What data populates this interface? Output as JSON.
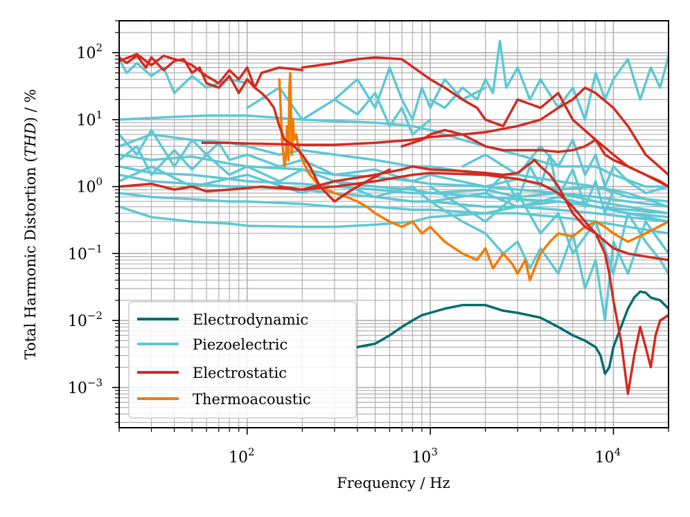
{
  "chart_data": {
    "type": "line",
    "title": "",
    "xlabel": "Frequency / Hz",
    "ylabel_parts": [
      "Total Harmonic Distortion (",
      "THD",
      ") / %"
    ],
    "xscale": "log",
    "yscale": "log",
    "xlim": [
      20,
      20000
    ],
    "ylim": [
      0.00025,
      300
    ],
    "grid": "major and minor",
    "legend_position": "lower-left",
    "x_ticks": [
      {
        "value": 100,
        "base": "10",
        "exp": "2"
      },
      {
        "value": 1000,
        "base": "10",
        "exp": "3"
      },
      {
        "value": 10000,
        "base": "10",
        "exp": "4"
      }
    ],
    "y_ticks": [
      {
        "value": 0.001,
        "base": "10",
        "exp": "−3"
      },
      {
        "value": 0.01,
        "base": "10",
        "exp": "−2"
      },
      {
        "value": 0.1,
        "base": "10",
        "exp": "−1"
      },
      {
        "value": 1,
        "base": "10",
        "exp": "0"
      },
      {
        "value": 10,
        "base": "10",
        "exp": "1"
      },
      {
        "value": 100,
        "base": "10",
        "exp": "2"
      }
    ],
    "legend": [
      {
        "name": "Electrodynamic",
        "color": "#006d6f"
      },
      {
        "name": "Piezoelectric",
        "color": "#5ec8d4"
      },
      {
        "name": "Electrostatic",
        "color": "#d42a1e"
      },
      {
        "name": "Thermoacoustic",
        "color": "#f57a00"
      }
    ],
    "series": [
      {
        "group": "Piezoelectric",
        "x": [
          20,
          40,
          60,
          100,
          200,
          300,
          500,
          800,
          1000,
          1500,
          2000,
          3000,
          5000,
          8000,
          10000,
          15000,
          20000
        ],
        "y": [
          10,
          11,
          11.5,
          11.5,
          10,
          9.5,
          9,
          8,
          7,
          5,
          4,
          3,
          2,
          2,
          1.5,
          1,
          1
        ]
      },
      {
        "group": "Piezoelectric",
        "x": [
          20,
          30,
          50,
          80,
          100,
          150,
          200,
          300,
          500,
          800,
          1000,
          2000,
          3000,
          5000,
          8000,
          12000,
          20000
        ],
        "y": [
          4,
          6,
          5,
          4.5,
          4,
          3,
          3.5,
          3,
          2.5,
          2,
          2,
          1.5,
          1.5,
          1.2,
          1,
          0.8,
          0.5
        ]
      },
      {
        "group": "Piezoelectric",
        "x": [
          20,
          30,
          50,
          80,
          100,
          200,
          300,
          500,
          800,
          1000,
          2000,
          3000,
          5000,
          8000,
          12000,
          20000
        ],
        "y": [
          3,
          2.5,
          2.8,
          2.2,
          2,
          1.8,
          1.5,
          1.4,
          1.2,
          1.1,
          1,
          0.9,
          0.8,
          0.7,
          0.6,
          0.5
        ]
      },
      {
        "group": "Piezoelectric",
        "x": [
          20,
          30,
          50,
          80,
          100,
          200,
          300,
          500,
          800,
          1000,
          2000,
          3000,
          5000,
          8000,
          12000,
          20000
        ],
        "y": [
          2,
          1.6,
          1.5,
          1.3,
          1.2,
          1.1,
          1,
          0.9,
          0.8,
          0.8,
          0.7,
          0.65,
          0.6,
          0.5,
          0.45,
          0.4
        ]
      },
      {
        "group": "Piezoelectric",
        "x": [
          20,
          30,
          50,
          80,
          100,
          200,
          300,
          500,
          800,
          1000,
          2000,
          3000,
          5000,
          8000,
          12000,
          20000
        ],
        "y": [
          1.5,
          1.2,
          1.1,
          1,
          1,
          0.9,
          0.8,
          0.7,
          0.6,
          0.6,
          0.5,
          0.5,
          0.45,
          0.4,
          0.35,
          0.3
        ]
      },
      {
        "group": "Piezoelectric",
        "x": [
          20,
          30,
          50,
          80,
          100,
          200,
          300,
          500,
          800,
          1000,
          2000,
          3000,
          5000,
          8000,
          12000,
          20000
        ],
        "y": [
          0.8,
          0.7,
          0.65,
          0.6,
          0.6,
          0.55,
          0.5,
          0.5,
          0.45,
          0.45,
          0.4,
          0.4,
          0.35,
          0.3,
          0.25,
          0.2
        ]
      },
      {
        "group": "Piezoelectric",
        "x": [
          20,
          30,
          50,
          80,
          100,
          200,
          300,
          500,
          800,
          1000,
          2000,
          3000,
          5000,
          8000,
          12000,
          20000
        ],
        "y": [
          0.5,
          0.35,
          0.3,
          0.28,
          0.26,
          0.25,
          0.25,
          0.27,
          0.3,
          0.35,
          0.4,
          0.5,
          0.6,
          0.5,
          0.4,
          0.3
        ]
      },
      {
        "group": "Piezoelectric",
        "x": [
          20,
          25,
          30,
          40,
          50,
          60,
          70,
          80,
          100,
          150,
          200,
          300,
          500,
          800,
          1000,
          2000,
          3000,
          5000,
          8000,
          12000,
          20000
        ],
        "y": [
          6,
          3,
          7,
          2,
          5,
          3,
          4.5,
          2.5,
          3,
          2,
          2.5,
          1.5,
          1.8,
          1.2,
          1.5,
          1,
          1.3,
          0.9,
          1,
          0.7,
          0.6
        ]
      },
      {
        "group": "Piezoelectric",
        "x": [
          20,
          25,
          30,
          40,
          50,
          60,
          80,
          100,
          150,
          200,
          300,
          500,
          800,
          1000,
          2000,
          3000,
          5000,
          8000,
          12000,
          20000
        ],
        "y": [
          2.5,
          4,
          1.5,
          3.5,
          1.8,
          3,
          1.5,
          2,
          1.2,
          1.8,
          1.2,
          1,
          0.9,
          0.8,
          0.9,
          0.7,
          0.8,
          0.6,
          0.5,
          0.4
        ]
      },
      {
        "group": "Piezoelectric",
        "x": [
          20,
          30,
          50,
          100,
          200,
          300,
          500,
          800,
          1000,
          2000,
          3000,
          5000,
          8000,
          12000,
          20000
        ],
        "y": [
          1.2,
          2,
          1,
          1.5,
          0.8,
          1.2,
          0.7,
          1,
          0.6,
          0.8,
          0.5,
          0.7,
          0.5,
          0.4,
          0.35
        ]
      },
      {
        "group": "Piezoelectric",
        "x": [
          20,
          22,
          25,
          30,
          35,
          40,
          50,
          60,
          80,
          100
        ],
        "y": [
          80,
          50,
          70,
          45,
          60,
          25,
          45,
          30,
          40,
          35
        ]
      },
      {
        "group": "Piezoelectric",
        "x": [
          1000,
          1200,
          1500,
          1800,
          2000,
          2200,
          2400,
          2600,
          3000,
          3500,
          4000,
          5000,
          6000,
          7000,
          8000,
          9000,
          10000,
          12000,
          14000,
          16000,
          18000,
          20000
        ],
        "y": [
          20,
          15,
          30,
          20,
          40,
          25,
          150,
          30,
          60,
          20,
          40,
          15,
          30,
          10,
          50,
          20,
          40,
          80,
          20,
          60,
          30,
          90
        ]
      },
      {
        "group": "Piezoelectric",
        "x": [
          300,
          400,
          500,
          600,
          700,
          800,
          900,
          1000,
          1200,
          1500,
          2000
        ],
        "y": [
          20,
          40,
          15,
          60,
          20,
          10,
          30,
          15,
          40,
          20,
          30
        ]
      },
      {
        "group": "Piezoelectric",
        "x": [
          100,
          150,
          200,
          300,
          400,
          500,
          600,
          700,
          800,
          1000
        ],
        "y": [
          15,
          30,
          10,
          20,
          12,
          25,
          8,
          15,
          6,
          10
        ]
      },
      {
        "group": "Piezoelectric",
        "x": [
          1000,
          1500,
          2000,
          2500,
          3000,
          3500,
          4000,
          5000,
          6000,
          7000,
          8000,
          9000,
          10000,
          12000,
          15000,
          20000
        ],
        "y": [
          0.6,
          0.3,
          0.2,
          0.1,
          0.15,
          0.06,
          0.12,
          0.05,
          0.2,
          0.03,
          0.08,
          0.01,
          0.15,
          0.05,
          0.3,
          0.1
        ]
      },
      {
        "group": "Piezoelectric",
        "x": [
          1000,
          1500,
          2000,
          3000,
          4000,
          5000,
          6000,
          8000,
          10000,
          12000,
          15000,
          18000,
          20000
        ],
        "y": [
          1,
          0.5,
          0.3,
          0.8,
          0.2,
          0.4,
          0.1,
          0.3,
          0.05,
          0.4,
          0.15,
          0.08,
          0.05
        ]
      },
      {
        "group": "Piezoelectric",
        "x": [
          1500,
          2000,
          3000,
          4000,
          5000,
          6000,
          7000,
          8000,
          9000,
          10000,
          12000,
          15000,
          20000
        ],
        "y": [
          2,
          3,
          1.5,
          4,
          2,
          5,
          1.5,
          3,
          1,
          2,
          1.2,
          0.8,
          1
        ]
      },
      {
        "group": "Piezoelectric",
        "x": [
          2000,
          2500,
          3000,
          3500,
          4000,
          4500,
          5000,
          6000,
          7000,
          8000,
          9000,
          10000
        ],
        "y": [
          0.8,
          1.5,
          0.6,
          2,
          1,
          3,
          0.7,
          1.8,
          0.5,
          1.2,
          0.4,
          0.9
        ]
      },
      {
        "group": "Electrodynamic",
        "x": [
          400,
          500,
          600,
          700,
          800,
          900,
          1000,
          1200,
          1500,
          2000,
          2500,
          3000,
          4000,
          5000,
          6000,
          7000,
          8000,
          8500,
          9000,
          9500,
          10000,
          11000,
          12000,
          13000,
          14000,
          15000,
          16000,
          18000,
          20000
        ],
        "y": [
          0.004,
          0.0045,
          0.006,
          0.008,
          0.01,
          0.012,
          0.013,
          0.015,
          0.017,
          0.017,
          0.014,
          0.013,
          0.011,
          0.008,
          0.006,
          0.005,
          0.004,
          0.003,
          0.0016,
          0.002,
          0.004,
          0.008,
          0.015,
          0.022,
          0.027,
          0.026,
          0.022,
          0.02,
          0.015
        ]
      },
      {
        "group": "Electrostatic",
        "x": [
          20,
          25,
          30,
          35,
          40,
          45,
          50,
          60,
          70,
          80,
          90,
          100,
          110,
          120,
          130,
          140,
          150,
          160,
          170,
          180,
          190,
          200,
          220,
          250,
          300,
          350,
          400,
          450,
          500,
          550,
          600
        ],
        "y": [
          75,
          95,
          65,
          90,
          80,
          75,
          65,
          45,
          35,
          55,
          40,
          60,
          30,
          25,
          20,
          15,
          8,
          5,
          4.5,
          4,
          3.5,
          3,
          2,
          1,
          0.6,
          0.8,
          1,
          1.2,
          1.4,
          1.6,
          1.8
        ]
      },
      {
        "group": "Electrostatic",
        "x": [
          20,
          22,
          25,
          28,
          30,
          35,
          40,
          45,
          50,
          55,
          60,
          70,
          80,
          90,
          100,
          110,
          120,
          150,
          200
        ],
        "y": [
          85,
          70,
          90,
          60,
          85,
          55,
          75,
          80,
          50,
          60,
          35,
          30,
          45,
          25,
          40,
          30,
          50,
          60,
          55
        ]
      },
      {
        "group": "Electrostatic",
        "x": [
          20,
          30,
          40,
          50,
          60,
          80,
          100,
          120,
          150,
          200,
          300,
          500,
          800,
          1000,
          2000,
          3000,
          4000,
          5000,
          6000,
          7000,
          8000,
          10000,
          12000,
          15000,
          20000
        ],
        "y": [
          1,
          1.1,
          0.9,
          1,
          0.85,
          0.9,
          0.95,
          1,
          0.95,
          0.9,
          1,
          1.2,
          1.5,
          1.6,
          1.5,
          1.3,
          1.1,
          0.8,
          0.5,
          0.3,
          0.2,
          0.12,
          0.1,
          0.09,
          0.08
        ]
      },
      {
        "group": "Electrostatic",
        "x": [
          150,
          200,
          300,
          500,
          700,
          800,
          1000,
          1500,
          2000,
          2500,
          3000,
          3500,
          3700,
          4000,
          4500,
          5000,
          6000,
          7000,
          8000,
          9000,
          9500,
          10000,
          11000,
          12000,
          13000,
          14000,
          15000,
          16000,
          17000,
          18000,
          20000
        ],
        "y": [
          1,
          0.9,
          1.2,
          1.5,
          1.8,
          2,
          1.8,
          1.7,
          1.6,
          1.5,
          1.6,
          2.2,
          2.5,
          2,
          1.5,
          1,
          0.4,
          0.25,
          0.2,
          0.1,
          0.05,
          0.02,
          0.005,
          0.0008,
          0.003,
          0.008,
          0.004,
          0.002,
          0.006,
          0.01,
          0.012
        ]
      },
      {
        "group": "Electrostatic",
        "x": [
          57,
          80,
          100,
          150,
          200,
          300,
          500,
          800,
          1000,
          1500,
          2000,
          3000,
          4000,
          5000,
          6000,
          7000,
          8000,
          10000,
          12000,
          15000,
          20000
        ],
        "y": [
          4.5,
          4.5,
          4.4,
          4.3,
          4.2,
          4.2,
          4.5,
          5,
          5.5,
          6,
          6.5,
          8,
          10,
          15,
          20,
          30,
          25,
          15,
          8,
          3,
          1.5
        ]
      },
      {
        "group": "Electrostatic",
        "x": [
          200,
          300,
          400,
          500,
          700,
          1000,
          1200,
          1500,
          1800,
          2000,
          2500,
          3000,
          4000,
          5000,
          6000,
          8000,
          10000,
          12000,
          15000,
          20000
        ],
        "y": [
          60,
          70,
          80,
          85,
          80,
          40,
          30,
          20,
          15,
          10,
          8,
          20,
          15,
          25,
          10,
          5,
          3,
          2,
          1.5,
          1
        ]
      },
      {
        "group": "Electrostatic",
        "x": [
          700,
          900,
          1000,
          1200,
          1500,
          2000,
          2500,
          3000,
          4000,
          5000,
          6000,
          7000,
          8000,
          9000,
          10000,
          12000,
          15000,
          18000,
          20000
        ],
        "y": [
          4,
          5,
          6,
          7,
          6,
          4,
          3.5,
          3.5,
          3.5,
          3.3,
          3.5,
          4,
          5,
          3,
          2.5,
          2,
          1.5,
          1.2,
          1
        ]
      },
      {
        "group": "Thermoacoustic",
        "x": [
          150,
          155,
          160,
          163,
          165,
          168,
          170,
          172,
          175,
          178,
          180,
          185,
          190,
          200,
          220,
          250,
          300,
          350,
          400,
          450,
          500,
          600,
          700,
          800,
          900,
          1000,
          1200,
          1500,
          1800,
          2000,
          2200,
          2500,
          2800,
          3000,
          3300,
          3500,
          4000,
          4500,
          5000,
          6000,
          7000,
          8000,
          9000,
          10000,
          12000,
          15000,
          20000
        ],
        "y": [
          40,
          5,
          2,
          3,
          8,
          2.5,
          30,
          50,
          3,
          10,
          5,
          6,
          4,
          2.5,
          1.5,
          1,
          0.8,
          0.7,
          0.6,
          0.5,
          0.4,
          0.3,
          0.25,
          0.3,
          0.2,
          0.25,
          0.15,
          0.1,
          0.08,
          0.12,
          0.06,
          0.1,
          0.07,
          0.05,
          0.08,
          0.04,
          0.1,
          0.15,
          0.2,
          0.18,
          0.25,
          0.3,
          0.25,
          0.2,
          0.15,
          0.2,
          0.3
        ]
      }
    ]
  }
}
